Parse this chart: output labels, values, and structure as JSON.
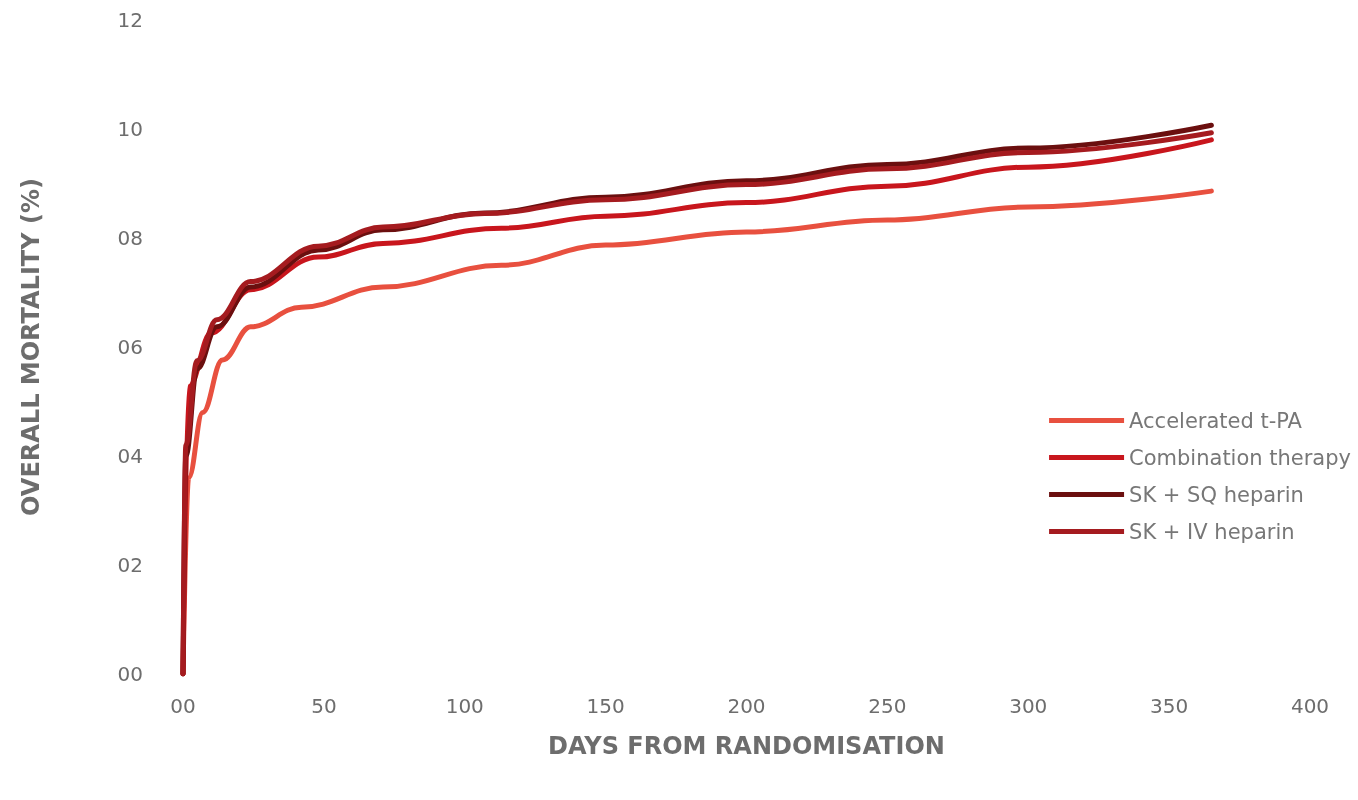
{
  "chart_data": {
    "type": "line",
    "xlabel": "DAYS FROM RANDOMISATION",
    "ylabel": "OVERALL MORTALITY (%)",
    "xlim": [
      0,
      400
    ],
    "xticks": [
      {
        "value": 0,
        "label": "00"
      },
      50,
      100,
      150,
      200,
      250,
      300,
      350,
      400
    ],
    "ylim": [
      0,
      12
    ],
    "yticks": [
      {
        "value": 0,
        "label": "00"
      },
      {
        "value": 2,
        "label": "02"
      },
      {
        "value": 4,
        "label": "04"
      },
      {
        "value": 6,
        "label": "06"
      },
      {
        "value": 8,
        "label": "08"
      },
      10,
      12
    ],
    "grid": false,
    "legend": "right",
    "marker": "none",
    "line_style": "solid",
    "series": [
      {
        "name": "Accelerated t-PA",
        "color": "#e8503f",
        "x": [
          0,
          2,
          7,
          14,
          24,
          42,
          71,
          113,
          150,
          200,
          250,
          300,
          365
        ],
        "values": [
          0,
          3.6,
          4.8,
          5.76,
          6.37,
          6.73,
          7.1,
          7.5,
          7.87,
          8.11,
          8.33,
          8.57,
          8.86
        ]
      },
      {
        "name": "Combination therapy",
        "color": "#c8161d",
        "x": [
          0,
          2,
          10,
          24,
          48,
          71,
          113,
          150,
          200,
          250,
          300,
          365
        ],
        "values": [
          0,
          5.27,
          6.26,
          7.05,
          7.65,
          7.9,
          8.18,
          8.4,
          8.65,
          8.95,
          9.3,
          9.8
        ]
      },
      {
        "name": "SK + SQ heparin",
        "color": "#6b0f0f",
        "x": [
          0,
          1,
          5,
          12,
          24,
          48,
          71,
          107,
          150,
          200,
          250,
          300,
          365
        ],
        "values": [
          0,
          4.0,
          5.6,
          6.37,
          7.1,
          7.78,
          8.15,
          8.46,
          8.75,
          9.05,
          9.35,
          9.65,
          10.07
        ]
      },
      {
        "name": "SK + IV heparin",
        "color": "#a51b1f",
        "x": [
          0,
          1,
          5,
          12,
          24,
          48,
          71,
          107,
          150,
          200,
          250,
          300,
          365
        ],
        "values": [
          0,
          4.2,
          5.75,
          6.5,
          7.2,
          7.85,
          8.2,
          8.45,
          8.7,
          8.98,
          9.27,
          9.57,
          9.93
        ]
      }
    ]
  }
}
